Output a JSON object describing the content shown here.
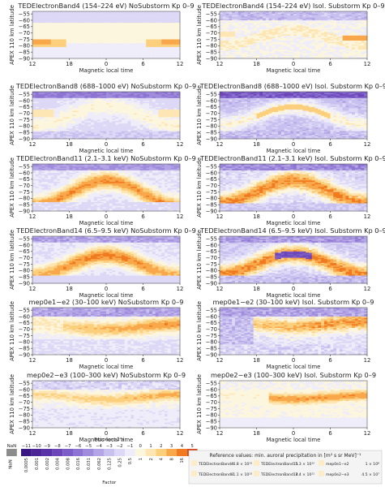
{
  "figure": {
    "ylabel": "APEX 110 km latitude",
    "xlabel": "Magnetic local time",
    "x_ticks": [
      "12",
      "18",
      "0",
      "6",
      "12"
    ],
    "y_ticks": [
      "−55",
      "−60",
      "−65",
      "−70",
      "−75",
      "−80",
      "−85",
      "−90"
    ]
  },
  "legend": {
    "nan_label": "NaN",
    "nan_color": "#8c8c8c",
    "exponent_title": "Exponent 2ⁿx",
    "exponents": [
      "−11",
      "−10",
      "−9",
      "−8",
      "−7",
      "−6",
      "−5",
      "−4",
      "−3",
      "−2",
      "−1",
      "0",
      "1",
      "2",
      "3",
      "4",
      "5"
    ],
    "factors": [
      "0.0005",
      "0.001",
      "0.002",
      "0.004",
      "0.008",
      "0.016",
      "0.031",
      "0.062",
      "0.125",
      "0.25",
      "0.5",
      "1",
      "2",
      "4",
      "8",
      "16",
      "32"
    ],
    "factor_title": "Factor",
    "colors": [
      "#3a1685",
      "#4d2597",
      "#5b33a8",
      "#6c46b8",
      "#7c5cc7",
      "#8e74d2",
      "#a08cdc",
      "#b4a6e6",
      "#c8c0ef",
      "#dcd8f5",
      "#eeedf9",
      "#fdf6df",
      "#fde6b3",
      "#fbcf7c",
      "#f8a84a",
      "#f07a1f",
      "#d8461b"
    ],
    "reference_title": "Reference values: min. auroral precipitation in [m² s sr MeV]⁻¹",
    "reference_values": [
      {
        "name": "TEDElectronBand4",
        "value": "6.8 × 10¹³"
      },
      {
        "name": "TEDElectronBand11",
        "value": "5.3 × 10¹²"
      },
      {
        "name": "mep0e1−e2",
        "value": "1 × 10⁸"
      },
      {
        "name": "TEDElectronBand8",
        "value": "1.1 × 10¹³"
      },
      {
        "name": "TEDElectronBand14",
        "value": "7.4 × 10¹¹"
      },
      {
        "name": "mep0e2−e3",
        "value": "4.5 × 10⁷"
      }
    ]
  },
  "chart_data": [
    {
      "type": "heatmap",
      "title": "TEDElectronBand4 (154–224 eV) NoSubstorm  Kp 0–9",
      "xlabel": "Magnetic local time",
      "ylabel": "APEX 110 km latitude",
      "xlim": [
        12,
        36
      ],
      "ylim": [
        -90,
        -53
      ],
      "pattern": "band4_no"
    },
    {
      "type": "heatmap",
      "title": "TEDElectronBand4 (154–224 eV) Isol. Substorm  Kp 0–9",
      "xlabel": "Magnetic local time",
      "ylabel": "APEX 110 km latitude",
      "xlim": [
        12,
        36
      ],
      "ylim": [
        -90,
        -53
      ],
      "pattern": "band4_iso"
    },
    {
      "type": "heatmap",
      "title": "TEDElectronBand8 (688–1000 eV) NoSubstorm  Kp 0–9",
      "xlabel": "Magnetic local time",
      "ylabel": "APEX 110 km latitude",
      "xlim": [
        12,
        36
      ],
      "ylim": [
        -90,
        -53
      ],
      "pattern": "band8_no"
    },
    {
      "type": "heatmap",
      "title": "TEDElectronBand8 (688–1000 eV) Isol. Substorm  Kp 0–9",
      "xlabel": "Magnetic local time",
      "ylabel": "APEX 110 km latitude",
      "xlim": [
        12,
        36
      ],
      "ylim": [
        -90,
        -53
      ],
      "pattern": "band8_iso"
    },
    {
      "type": "heatmap",
      "title": "TEDElectronBand11 (2.1–3.1 keV) NoSubstorm  Kp 0–9",
      "xlabel": "Magnetic local time",
      "ylabel": "APEX 110 km latitude",
      "xlim": [
        12,
        36
      ],
      "ylim": [
        -90,
        -53
      ],
      "pattern": "band11_no"
    },
    {
      "type": "heatmap",
      "title": "TEDElectronBand11 (2.1–3.1 keV) Isol. Substorm  Kp 0–9",
      "xlabel": "Magnetic local time",
      "ylabel": "APEX 110 km latitude",
      "xlim": [
        12,
        36
      ],
      "ylim": [
        -90,
        -53
      ],
      "pattern": "band11_iso"
    },
    {
      "type": "heatmap",
      "title": "TEDElectronBand14 (6.5–9.5 keV) NoSubstorm  Kp 0–9",
      "xlabel": "Magnetic local time",
      "ylabel": "APEX 110 km latitude",
      "xlim": [
        12,
        36
      ],
      "ylim": [
        -90,
        -53
      ],
      "pattern": "band14_no"
    },
    {
      "type": "heatmap",
      "title": "TEDElectronBand14 (6.5–9.5 keV) Isol. Substorm  Kp 0–9",
      "xlabel": "Magnetic local time",
      "ylabel": "APEX 110 km latitude",
      "xlim": [
        12,
        36
      ],
      "ylim": [
        -90,
        -53
      ],
      "pattern": "band14_iso"
    },
    {
      "type": "heatmap",
      "title": "mep0e1−e2 (30–100 keV) NoSubstorm  Kp 0–9",
      "xlabel": "Magnetic local time",
      "ylabel": "APEX 110 km latitude",
      "xlim": [
        12,
        36
      ],
      "ylim": [
        -90,
        -53
      ],
      "pattern": "mep1_no"
    },
    {
      "type": "heatmap",
      "title": "mep0e1−e2 (30–100 keV) Isol. Substorm  Kp 0–9",
      "xlabel": "Magnetic local time",
      "ylabel": "APEX 110 km latitude",
      "xlim": [
        12,
        36
      ],
      "ylim": [
        -90,
        -53
      ],
      "pattern": "mep1_iso"
    },
    {
      "type": "heatmap",
      "title": "mep0e2−e3 (100–300 keV) NoSubstorm  Kp 0–9",
      "xlabel": "Magnetic local time",
      "ylabel": "APEX 110 km latitude",
      "xlim": [
        12,
        36
      ],
      "ylim": [
        -90,
        -53
      ],
      "pattern": "mep2_no"
    },
    {
      "type": "heatmap",
      "title": "mep0e2−e3 (100–300 keV) Isol. Substorm  Kp 0–9",
      "xlabel": "Magnetic local time",
      "ylabel": "APEX 110 km latitude",
      "xlim": [
        12,
        36
      ],
      "ylim": [
        -90,
        -53
      ],
      "pattern": "mep2_iso"
    }
  ]
}
